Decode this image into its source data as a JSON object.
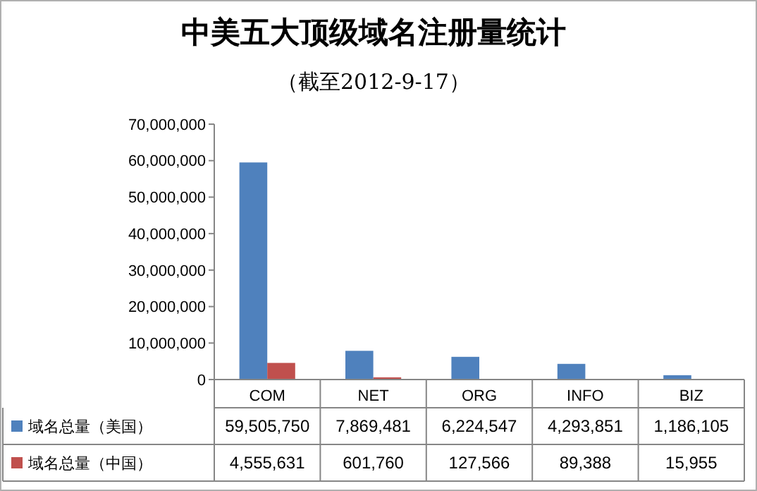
{
  "chart_data": {
    "type": "bar",
    "title": "中美五大顶级域名注册量统计",
    "subtitle": "（截至2012-9-17）",
    "categories": [
      "COM",
      "NET",
      "ORG",
      "INFO",
      "BIZ"
    ],
    "series": [
      {
        "name": "域名总量（美国）",
        "color": "#4f81bd",
        "values": [
          59505750,
          7869481,
          6224547,
          4293851,
          1186105
        ],
        "value_labels": [
          "59,505,750",
          "7,869,481",
          "6,224,547",
          "4,293,851",
          "1,186,105"
        ]
      },
      {
        "name": "域名总量（中国）",
        "color": "#c0504d",
        "values": [
          4555631,
          601760,
          127566,
          89388,
          15955
        ],
        "value_labels": [
          "4,555,631",
          "601,760",
          "127,566",
          "89,388",
          "15,955"
        ]
      }
    ],
    "ylim": [
      0,
      70000000
    ],
    "yticks": [
      0,
      {
        "value": 10000000,
        "label": "10,000,000"
      },
      {
        "value": 20000000,
        "label": "20,000,000"
      },
      {
        "value": 30000000,
        "label": "30,000,000"
      },
      {
        "value": 40000000,
        "label": "40,000,000"
      },
      {
        "value": 50000000,
        "label": "50,000,000"
      },
      {
        "value": 60000000,
        "label": "60,000,000"
      },
      {
        "value": 70000000,
        "label": "70,000,000"
      }
    ],
    "legend": "bottom",
    "grid": false
  }
}
